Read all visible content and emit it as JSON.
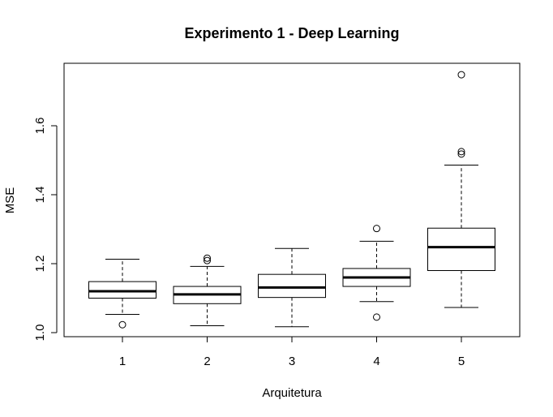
{
  "chart_data": {
    "type": "boxplot",
    "title": "Experimento 1 - Deep Learning",
    "xlabel": "Arquitetura",
    "ylabel": "MSE",
    "ylim": [
      0.99,
      1.77
    ],
    "y_ticks": [
      1.0,
      1.2,
      1.4,
      1.6
    ],
    "y_tick_labels": [
      "1.0",
      "1.2",
      "1.4",
      "1.6"
    ],
    "grid": false,
    "legend": "none",
    "categories": [
      "1",
      "2",
      "3",
      "4",
      "5"
    ],
    "boxes": [
      {
        "category": "1",
        "whisker_low": 1.053,
        "q1": 1.1,
        "median": 1.12,
        "q3": 1.148,
        "whisker_high": 1.213,
        "outliers": [
          1.023
        ]
      },
      {
        "category": "2",
        "whisker_low": 1.02,
        "q1": 1.084,
        "median": 1.111,
        "q3": 1.134,
        "whisker_high": 1.192,
        "outliers": [
          1.209,
          1.216
        ]
      },
      {
        "category": "3",
        "whisker_low": 1.017,
        "q1": 1.102,
        "median": 1.131,
        "q3": 1.169,
        "whisker_high": 1.244,
        "outliers": []
      },
      {
        "category": "4",
        "whisker_low": 1.09,
        "q1": 1.134,
        "median": 1.16,
        "q3": 1.186,
        "whisker_high": 1.265,
        "outliers": [
          1.045,
          1.302
        ]
      },
      {
        "category": "5",
        "whisker_low": 1.073,
        "q1": 1.18,
        "median": 1.248,
        "q3": 1.303,
        "whisker_high": 1.486,
        "outliers": [
          1.518,
          1.525,
          1.748
        ]
      }
    ],
    "colors": {
      "box_fill": "#ffffff",
      "stroke": "#000000",
      "background": "#ffffff"
    }
  }
}
